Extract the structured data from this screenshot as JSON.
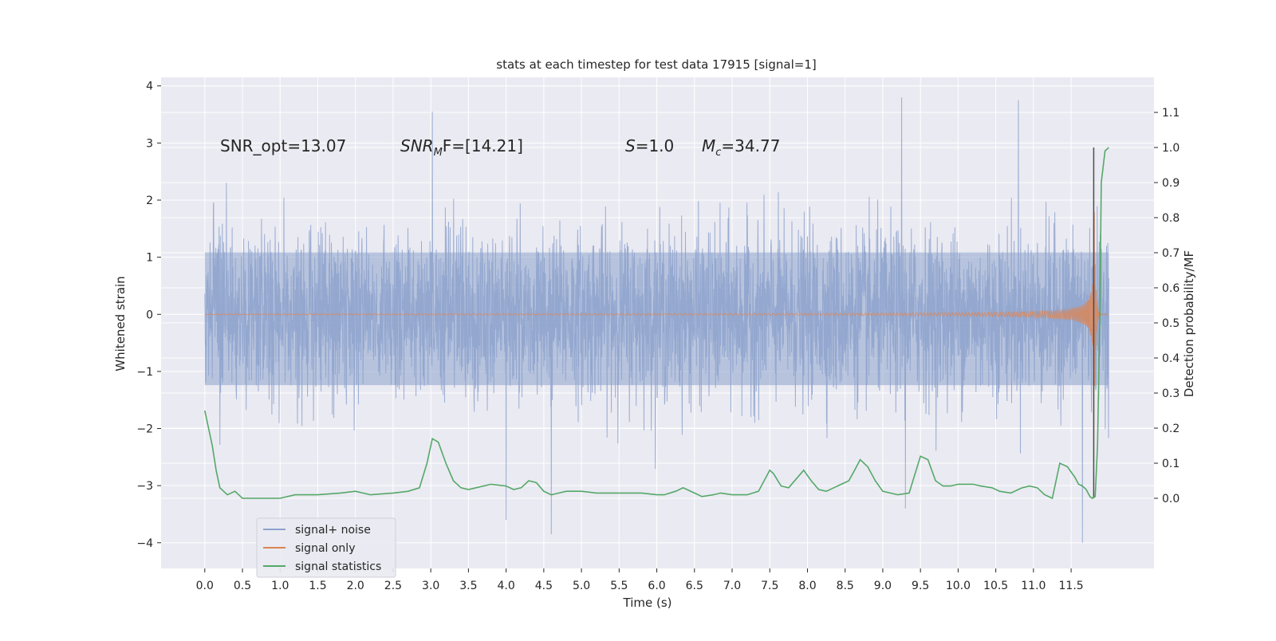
{
  "chart_data": {
    "type": "line",
    "title": "stats at each timestep for test data 17915 [signal=1]",
    "xlabel": "Time (s)",
    "ylabel_left": "Whitened strain",
    "ylabel_right": "Detection probability/MF",
    "xlim": [
      -0.58,
      12.6
    ],
    "ylim_left": [
      -4.45,
      4.15
    ],
    "ylim_right": [
      -0.2,
      1.2
    ],
    "x_ticks": [
      "0.0",
      "0.5",
      "1.0",
      "1.5",
      "2.0",
      "2.5",
      "3.0",
      "3.5",
      "4.0",
      "4.5",
      "5.0",
      "5.5",
      "6.0",
      "6.5",
      "7.0",
      "7.5",
      "8.0",
      "8.5",
      "9.0",
      "9.5",
      "10.0",
      "10.5",
      "11.0",
      "11.5"
    ],
    "y_ticks_left": [
      4,
      3,
      2,
      1,
      0,
      -1,
      -2,
      -3,
      -4
    ],
    "y_ticks_left_labels": [
      "4",
      "3",
      "2",
      "1",
      "0",
      "−1",
      "−2",
      "−3",
      "−4"
    ],
    "y_ticks_right": [
      "1.1",
      "1.0",
      "0.9",
      "0.8",
      "0.7",
      "0.6",
      "0.5",
      "0.4",
      "0.3",
      "0.2",
      "0.1",
      "0.0"
    ],
    "annotations": {
      "snr_opt": "SNR_opt=13.07",
      "snr_mf": "F=[14.21]",
      "s": "=1.0",
      "mc": "=34.77"
    },
    "legend": [
      "signal+ noise",
      "signal only",
      "signal statistics"
    ],
    "merger_time": 11.8,
    "series": [
      {
        "name": "signal+ noise",
        "color": "#8da2cc",
        "x_range": [
          0.0,
          12.0
        ],
        "envelope_core": [
          -2.0,
          1.75
        ],
        "notable_peaks": [
          {
            "x": 3.02,
            "y": 3.55
          },
          {
            "x": 9.25,
            "y": 3.8
          },
          {
            "x": 10.8,
            "y": 3.75
          },
          {
            "x": 4.0,
            "y": -3.6
          },
          {
            "x": 4.6,
            "y": -3.85
          },
          {
            "x": 9.3,
            "y": -3.4
          },
          {
            "x": 11.65,
            "y": -4.0
          }
        ]
      },
      {
        "name": "signal only",
        "color": "#dd8452",
        "x_range": [
          0.0,
          12.0
        ],
        "merger_amplitude": 2.9
      },
      {
        "name": "signal statistics",
        "color": "#55a868",
        "axis": "right",
        "x": [
          0.0,
          0.05,
          0.1,
          0.15,
          0.2,
          0.3,
          0.4,
          0.5,
          0.7,
          1.0,
          1.2,
          1.5,
          1.8,
          2.0,
          2.2,
          2.5,
          2.7,
          2.85,
          2.95,
          3.02,
          3.1,
          3.2,
          3.3,
          3.4,
          3.5,
          3.6,
          3.8,
          4.0,
          4.1,
          4.2,
          4.3,
          4.4,
          4.5,
          4.6,
          4.7,
          4.8,
          5.0,
          5.2,
          5.5,
          5.8,
          6.0,
          6.1,
          6.25,
          6.35,
          6.5,
          6.6,
          6.75,
          6.85,
          7.0,
          7.2,
          7.35,
          7.45,
          7.5,
          7.55,
          7.65,
          7.75,
          7.85,
          7.95,
          8.05,
          8.15,
          8.25,
          8.35,
          8.45,
          8.55,
          8.6,
          8.7,
          8.8,
          8.9,
          9.0,
          9.2,
          9.35,
          9.5,
          9.6,
          9.7,
          9.8,
          9.9,
          10.0,
          10.2,
          10.3,
          10.45,
          10.55,
          10.7,
          10.85,
          10.95,
          11.05,
          11.15,
          11.25,
          11.35,
          11.45,
          11.55,
          11.6,
          11.65,
          11.7,
          11.75,
          11.78,
          11.82,
          11.85,
          11.88,
          11.9,
          11.95,
          12.0
        ],
        "values": [
          0.25,
          0.2,
          0.15,
          0.08,
          0.03,
          0.01,
          0.02,
          0.0,
          0.0,
          0.0,
          0.01,
          0.01,
          0.015,
          0.02,
          0.01,
          0.015,
          0.02,
          0.03,
          0.1,
          0.17,
          0.16,
          0.1,
          0.05,
          0.03,
          0.025,
          0.03,
          0.04,
          0.035,
          0.025,
          0.03,
          0.05,
          0.045,
          0.02,
          0.01,
          0.015,
          0.02,
          0.02,
          0.015,
          0.015,
          0.015,
          0.01,
          0.01,
          0.02,
          0.03,
          0.015,
          0.005,
          0.01,
          0.015,
          0.01,
          0.01,
          0.02,
          0.06,
          0.08,
          0.07,
          0.035,
          0.03,
          0.055,
          0.08,
          0.05,
          0.025,
          0.02,
          0.03,
          0.04,
          0.05,
          0.07,
          0.11,
          0.09,
          0.05,
          0.02,
          0.01,
          0.015,
          0.12,
          0.11,
          0.05,
          0.035,
          0.035,
          0.04,
          0.04,
          0.035,
          0.03,
          0.02,
          0.015,
          0.03,
          0.035,
          0.03,
          0.01,
          0.0,
          0.1,
          0.09,
          0.06,
          0.04,
          0.035,
          0.025,
          0.005,
          0.0,
          0.005,
          0.15,
          0.5,
          0.9,
          0.99,
          1.0
        ]
      }
    ]
  },
  "colors": {
    "plot_bg": "#eaeaf2",
    "grid": "#ffffff",
    "noise": "#8da2cc",
    "signal": "#dd8452",
    "stats": "#55a868",
    "merger_line": "#4c4c4c"
  }
}
